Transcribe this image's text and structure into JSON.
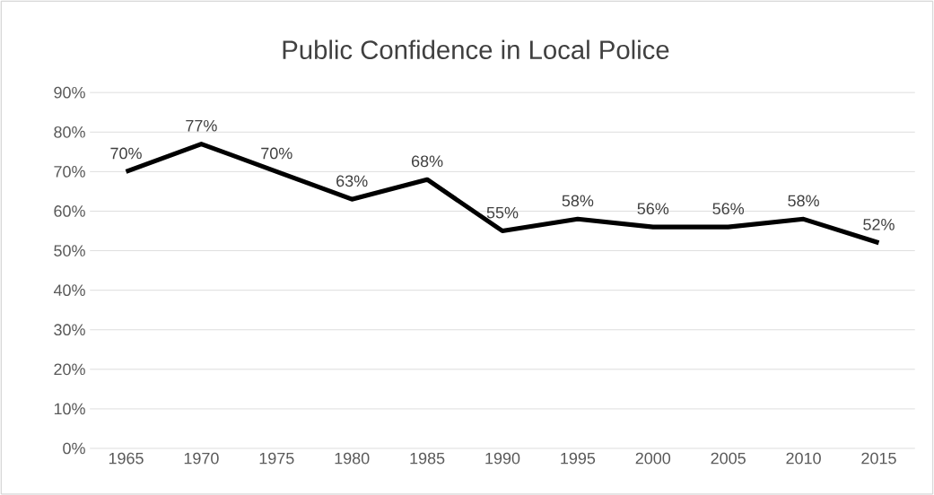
{
  "chart_data": {
    "type": "line",
    "title": "Public Confidence in Local Police",
    "categories": [
      "1965",
      "1970",
      "1975",
      "1980",
      "1985",
      "1990",
      "1995",
      "2000",
      "2005",
      "2010",
      "2015"
    ],
    "series": [
      {
        "color": "#000000",
        "values": [
          70,
          77,
          70,
          63,
          68,
          55,
          58,
          56,
          56,
          58,
          52
        ],
        "value_labels": [
          "70%",
          "77%",
          "70%",
          "63%",
          "68%",
          "55%",
          "58%",
          "56%",
          "56%",
          "58%",
          "52%"
        ]
      }
    ],
    "ylim": [
      0,
      90
    ],
    "yticks": [
      {
        "value": 0,
        "label": "0%"
      },
      {
        "value": 10,
        "label": "10%"
      },
      {
        "value": 20,
        "label": "20%"
      },
      {
        "value": 30,
        "label": "30%"
      },
      {
        "value": 40,
        "label": "40%"
      },
      {
        "value": 50,
        "label": "50%"
      },
      {
        "value": 60,
        "label": "60%"
      },
      {
        "value": 70,
        "label": "70%"
      },
      {
        "value": 80,
        "label": "80%"
      },
      {
        "value": 90,
        "label": "90%"
      }
    ],
    "grid": "y"
  }
}
